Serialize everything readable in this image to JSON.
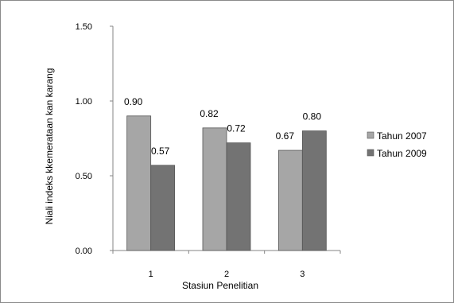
{
  "chart_data": {
    "type": "bar",
    "title": "",
    "xlabel": "Stasiun Penelitian",
    "ylabel": "Niali indeks kkemerataan kan karang",
    "categories": [
      "1",
      "2",
      "3"
    ],
    "ylim": [
      0,
      1.5
    ],
    "yticks": [
      "0.00",
      "0.50",
      "1.00",
      "1.50"
    ],
    "series": [
      {
        "name": "Tahun 2007",
        "values": [
          0.9,
          0.82,
          0.67
        ],
        "labels": [
          "0.90",
          "0.82",
          "0.67"
        ],
        "color": "#a6a6a6"
      },
      {
        "name": "Tahun 2009",
        "values": [
          0.57,
          0.72,
          0.8
        ],
        "labels": [
          "0.57",
          "0.72",
          "0.80"
        ],
        "color": "#737373"
      }
    ],
    "grid": false,
    "legend_position": "right"
  }
}
